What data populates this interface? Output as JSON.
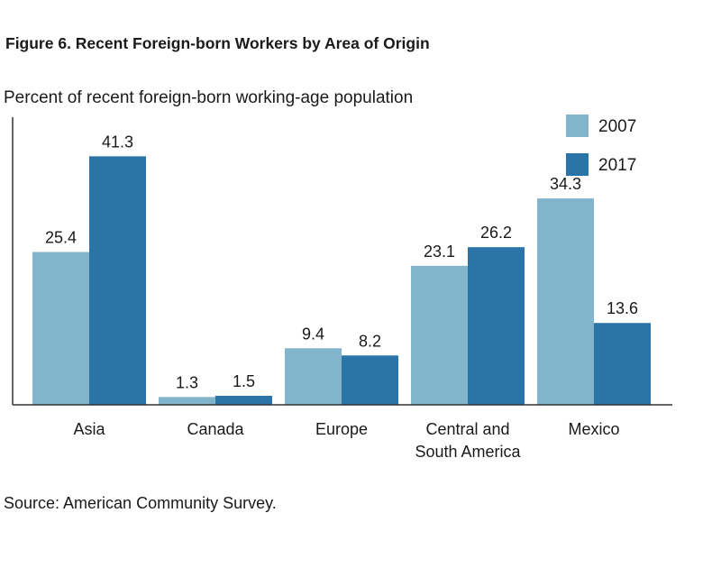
{
  "title": "Figure 6. Recent Foreign-born Workers by Area of Origin",
  "source": "Source: American Community Survey.",
  "colors": {
    "s2007": "#82b5cc",
    "s2017": "#2b74a8",
    "axis": "#333333"
  },
  "chart_data": {
    "type": "bar",
    "ylabel": "Percent of recent foreign-born working-age population",
    "categories": [
      [
        "Asia"
      ],
      [
        "Canada"
      ],
      [
        "Europe"
      ],
      [
        "Central and",
        "South America"
      ],
      [
        "Mexico"
      ]
    ],
    "series": [
      {
        "name": "2007",
        "values": [
          25.4,
          1.3,
          9.4,
          23.1,
          34.3
        ]
      },
      {
        "name": "2017",
        "values": [
          41.3,
          1.5,
          8.2,
          26.2,
          13.6
        ]
      }
    ],
    "ylim": [
      0,
      47.8
    ],
    "grid": false,
    "legend": "top-right"
  }
}
